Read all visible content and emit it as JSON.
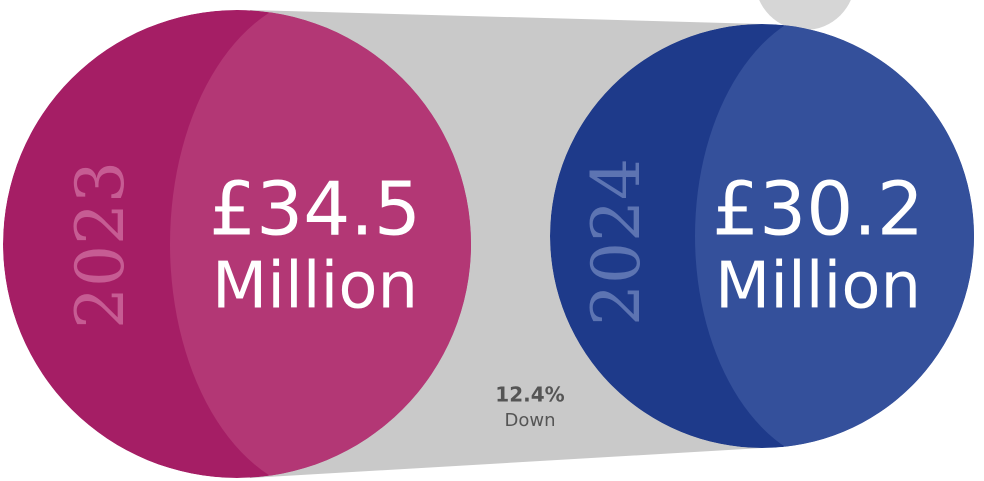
{
  "left": {
    "year": "2023",
    "amount": "£34.5",
    "unit": "Million"
  },
  "right": {
    "year": "2024",
    "amount": "£30.2",
    "unit": "Million"
  },
  "change": {
    "percent": "12.4%",
    "direction": "Down"
  }
}
